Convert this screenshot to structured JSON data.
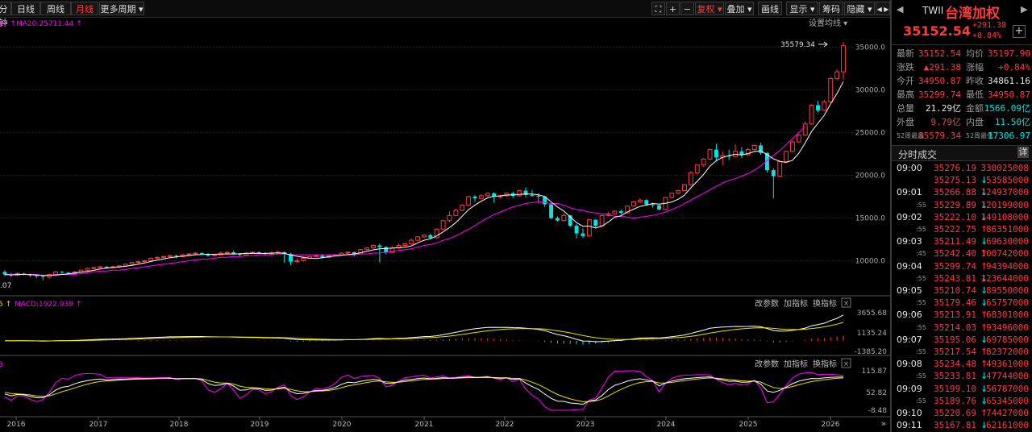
{
  "toolbar": {
    "tabs": [
      {
        "label": "分钟",
        "active": false
      },
      {
        "label": "日线",
        "active": false
      },
      {
        "label": "周线",
        "active": false
      },
      {
        "label": "月线",
        "active": true
      },
      {
        "label": "更多周期 ▾",
        "active": false
      }
    ],
    "right_buttons": [
      "⛶",
      "+",
      "−",
      "复权 ▾",
      "叠加 ▾",
      "画线",
      "显示 ▾",
      "筹码",
      "隐藏 ▾"
    ],
    "overflow": "◀ ▶"
  },
  "main_chart": {
    "ma_legend_prefix": "47 ↑",
    "ma20_label": "MA20:25711.44 ↑",
    "settings_label": "设置均线 ▾",
    "peak_label": "35579.34",
    "low_label": ".07",
    "y_ticks": [
      "35000.0",
      "30000.0",
      "25000.0",
      "20000.0",
      "15000.0",
      "10000.0"
    ],
    "y_tick_values": [
      35000,
      30000,
      25000,
      20000,
      15000,
      10000
    ],
    "y_range": [
      6000,
      37200
    ]
  },
  "macd_panel": {
    "prefix": "5 ↑",
    "label": "MACD:1922.939 ↑",
    "buttons": [
      "改参数",
      "加指标",
      "换指标",
      "×"
    ],
    "y_ticks": [
      "3655.68",
      "1135.24",
      "-1385.20"
    ]
  },
  "kdj_panel": {
    "prefix": "3",
    "buttons": [
      "改参数",
      "加指标",
      "换指标",
      "×"
    ],
    "y_ticks": [
      "115.87",
      "52.82",
      "-8.48"
    ]
  },
  "x_axis": {
    "years": [
      "2016",
      "2017",
      "2018",
      "2019",
      "2020",
      "2021",
      "2022",
      "2023",
      "2024",
      "2025",
      "2026"
    ],
    "nav_icon": "»"
  },
  "chart_data": {
    "type": "candlestick",
    "title": "",
    "period": "monthly",
    "x_start": "2015-07",
    "candles": [
      [
        8700,
        8400,
        8900,
        8200
      ],
      [
        8400,
        8300,
        8600,
        8100
      ],
      [
        8300,
        8500,
        8700,
        8200
      ],
      [
        8500,
        8400,
        8600,
        8300
      ],
      [
        8400,
        8300,
        8500,
        8100
      ],
      [
        8300,
        8200,
        8400,
        8000
      ],
      [
        8200,
        8100,
        8300,
        7700
      ],
      [
        8100,
        8400,
        8500,
        7900
      ],
      [
        8400,
        8700,
        8800,
        8300
      ],
      [
        8700,
        8600,
        8800,
        8500
      ],
      [
        8600,
        8500,
        8700,
        8400
      ],
      [
        8500,
        8700,
        8800,
        8400
      ],
      [
        8700,
        8900,
        9000,
        8600
      ],
      [
        8900,
        9100,
        9200,
        8800
      ],
      [
        9100,
        9200,
        9300,
        9000
      ],
      [
        9200,
        9300,
        9400,
        9100
      ],
      [
        9300,
        9200,
        9400,
        9100
      ],
      [
        9200,
        9300,
        9400,
        9100
      ],
      [
        9300,
        9400,
        9500,
        9200
      ],
      [
        9400,
        9600,
        9700,
        9300
      ],
      [
        9600,
        9800,
        9900,
        9500
      ],
      [
        9800,
        9900,
        10000,
        9700
      ],
      [
        9900,
        10000,
        10100,
        9800
      ],
      [
        10000,
        10300,
        10400,
        9900
      ],
      [
        10300,
        10400,
        10500,
        10200
      ],
      [
        10400,
        10500,
        10600,
        10300
      ],
      [
        10500,
        10600,
        10700,
        10400
      ],
      [
        10600,
        10500,
        10700,
        10300
      ],
      [
        10500,
        10700,
        10800,
        10400
      ],
      [
        10700,
        10800,
        10900,
        10600
      ],
      [
        10800,
        10900,
        11000,
        10700
      ],
      [
        10900,
        10800,
        11000,
        10700
      ],
      [
        10800,
        10600,
        10900,
        10500
      ],
      [
        10600,
        10700,
        10800,
        10500
      ],
      [
        10700,
        10900,
        11100,
        10600
      ],
      [
        10900,
        11000,
        11100,
        10800
      ],
      [
        11000,
        10800,
        11200,
        10700
      ],
      [
        10800,
        10700,
        10900,
        10500
      ],
      [
        10700,
        10900,
        11000,
        10600
      ],
      [
        10900,
        11000,
        11100,
        10800
      ],
      [
        11000,
        10900,
        11100,
        10800
      ],
      [
        10900,
        10800,
        11000,
        10600
      ],
      [
        10800,
        10900,
        11100,
        10700
      ],
      [
        10900,
        11000,
        11200,
        10800
      ],
      [
        11000,
        10800,
        11100,
        9800
      ],
      [
        10800,
        9900,
        10900,
        9500
      ],
      [
        9900,
        10000,
        10300,
        9800
      ],
      [
        10000,
        10300,
        10500,
        9900
      ],
      [
        10300,
        10500,
        10600,
        10200
      ],
      [
        10500,
        10600,
        10700,
        10400
      ],
      [
        10600,
        10400,
        10800,
        10300
      ],
      [
        10400,
        10600,
        10700,
        10300
      ],
      [
        10600,
        10700,
        10800,
        10500
      ],
      [
        10700,
        10900,
        11000,
        10600
      ],
      [
        10900,
        11000,
        11100,
        10800
      ],
      [
        11000,
        10800,
        11100,
        10500
      ],
      [
        10800,
        11300,
        11400,
        10700
      ],
      [
        11300,
        11500,
        11600,
        11200
      ],
      [
        11500,
        11800,
        11900,
        11400
      ],
      [
        11800,
        11600,
        12000,
        9800
      ],
      [
        11600,
        11000,
        11700,
        10800
      ],
      [
        11000,
        11500,
        11700,
        10900
      ],
      [
        11500,
        11800,
        12000,
        11400
      ],
      [
        11800,
        12000,
        12100,
        11700
      ],
      [
        12000,
        12400,
        12600,
        11900
      ],
      [
        12400,
        12800,
        12900,
        12300
      ],
      [
        12800,
        13000,
        13100,
        12700
      ],
      [
        13000,
        12700,
        13200,
        12500
      ],
      [
        12700,
        13700,
        13800,
        12600
      ],
      [
        13700,
        14700,
        14800,
        13600
      ],
      [
        14700,
        15300,
        15800,
        14500
      ],
      [
        15300,
        15900,
        16100,
        15200
      ],
      [
        15900,
        16500,
        16600,
        15800
      ],
      [
        16500,
        17500,
        17600,
        16400
      ],
      [
        17500,
        17300,
        17700,
        16900
      ],
      [
        17300,
        17600,
        17800,
        17200
      ],
      [
        17600,
        17900,
        18000,
        17500
      ],
      [
        17900,
        17500,
        18000,
        16800
      ],
      [
        17500,
        17600,
        17700,
        17300
      ],
      [
        17600,
        17900,
        18000,
        17500
      ],
      [
        17900,
        17600,
        18100,
        17400
      ],
      [
        17600,
        18200,
        18300,
        17500
      ],
      [
        18200,
        17700,
        18600,
        17400
      ],
      [
        17700,
        17600,
        18300,
        17500
      ],
      [
        17600,
        17500,
        17900,
        16900
      ],
      [
        17500,
        16600,
        17600,
        16300
      ],
      [
        16600,
        15000,
        16700,
        14900
      ],
      [
        15000,
        14700,
        15200,
        14600
      ],
      [
        14700,
        15300,
        15600,
        14600
      ],
      [
        15300,
        14100,
        15400,
        13900
      ],
      [
        14100,
        13200,
        14300,
        12600
      ],
      [
        13200,
        12900,
        13800,
        12700
      ],
      [
        12900,
        14800,
        14900,
        12800
      ],
      [
        14800,
        14100,
        14900,
        13900
      ],
      [
        14100,
        15300,
        15400,
        14000
      ],
      [
        15300,
        15500,
        15700,
        15200
      ],
      [
        15500,
        15800,
        15900,
        15400
      ],
      [
        15800,
        15600,
        16000,
        15400
      ],
      [
        15600,
        16400,
        16500,
        15500
      ],
      [
        16400,
        16900,
        17000,
        16300
      ],
      [
        16900,
        17100,
        17300,
        16800
      ],
      [
        17100,
        16600,
        17200,
        16400
      ],
      [
        16600,
        16500,
        16800,
        16200
      ],
      [
        16500,
        16000,
        16600,
        15900
      ],
      [
        16000,
        17400,
        17500,
        15900
      ],
      [
        17400,
        17900,
        18000,
        17300
      ],
      [
        17900,
        18200,
        18300,
        17800
      ],
      [
        18200,
        18900,
        19000,
        18100
      ],
      [
        18900,
        20300,
        20500,
        18800
      ],
      [
        20300,
        21200,
        21300,
        20100
      ],
      [
        21200,
        21900,
        22000,
        21000
      ],
      [
        21900,
        23000,
        23100,
        21800
      ],
      [
        23000,
        22100,
        23700,
        21600
      ],
      [
        22100,
        22300,
        22800,
        21200
      ],
      [
        22300,
        22200,
        23000,
        21800
      ],
      [
        22200,
        22800,
        23600,
        22100
      ],
      [
        22800,
        22400,
        23300,
        22000
      ],
      [
        22400,
        23000,
        23200,
        22300
      ],
      [
        23000,
        23500,
        23600,
        22900
      ],
      [
        23500,
        22600,
        23800,
        22400
      ],
      [
        22600,
        20600,
        22700,
        20300
      ],
      [
        20600,
        19900,
        20800,
        17300
      ],
      [
        19900,
        21600,
        21700,
        19800
      ],
      [
        21600,
        22800,
        22900,
        21500
      ],
      [
        22800,
        23900,
        24100,
        22700
      ],
      [
        23900,
        24700,
        24800,
        23800
      ],
      [
        24700,
        26000,
        26300,
        24600
      ],
      [
        26000,
        28200,
        28300,
        25900
      ],
      [
        28200,
        27600,
        28700,
        27400
      ],
      [
        27600,
        28600,
        28800,
        27500
      ],
      [
        28600,
        31300,
        31500,
        28500
      ],
      [
        31300,
        32100,
        32400,
        31100
      ],
      [
        32100,
        35152.54,
        35579.34,
        31200
      ]
    ],
    "ma20": [
      8400,
      8400,
      8400,
      8400,
      8400,
      8400,
      8300,
      8300,
      8400,
      8400,
      8400,
      8400,
      8500,
      8600,
      8700,
      8800,
      8800,
      8900,
      8900,
      9000,
      9100,
      9200,
      9300,
      9400,
      9500,
      9600,
      9700,
      9800,
      9900,
      10000,
      10100,
      10200,
      10200,
      10300,
      10400,
      10400,
      10500,
      10500,
      10600,
      10600,
      10700,
      10700,
      10700,
      10800,
      10800,
      10700,
      10700,
      10700,
      10700,
      10700,
      10700,
      10700,
      10700,
      10700,
      10700,
      10700,
      10800,
      10800,
      10900,
      10900,
      11000,
      11100,
      11200,
      11300,
      11400,
      11600,
      11800,
      11900,
      12100,
      12400,
      12600,
      12900,
      13300,
      13700,
      14100,
      14600,
      15000,
      15400,
      15700,
      16000,
      16300,
      16500,
      16700,
      16800,
      16900,
      16800,
      16700,
      16700,
      16500,
      16200,
      16000,
      15900,
      15700,
      15600,
      15500,
      15400,
      15200,
      15200,
      15100,
      15000,
      15100,
      15200,
      15300,
      15500,
      15700,
      16000,
      16300,
      16700,
      17100,
      17500,
      17900,
      18300,
      18700,
      19100,
      19400,
      19600,
      19900,
      20200,
      20600,
      21100,
      21700,
      22300,
      22900,
      23600,
      24300,
      25000,
      25711.44
    ],
    "macd_dif_range": [
      -1385.2,
      3655.68
    ],
    "kdj_range": [
      -8.48,
      115.87
    ]
  },
  "quote": {
    "code": "TWII",
    "name": "台湾加权",
    "price": "35152.54",
    "change": "+291.38",
    "change_pct": "+0.84%",
    "nav_left": "◀",
    "nav_right": "▶",
    "add_icon": "+",
    "rows": [
      {
        "l1": "最新",
        "v1": "35152.54",
        "c1": "red",
        "l2": "均价",
        "v2": "35197.90",
        "c2": "red"
      },
      {
        "l1": "涨跌",
        "v1": "▲291.38",
        "c1": "red",
        "l2": "涨幅",
        "v2": "+0.84%",
        "c2": "red"
      },
      {
        "l1": "今开",
        "v1": "34950.87",
        "c1": "red",
        "l2": "昨收",
        "v2": "34861.16",
        "c2": "white"
      },
      {
        "l1": "最高",
        "v1": "35299.74",
        "c1": "red",
        "l2": "最低",
        "v2": "34950.87",
        "c2": "red"
      },
      {
        "l1": "总量",
        "v1": "21.29亿",
        "c1": "white",
        "l2": "金额",
        "v2": "1566.09亿",
        "c2": "green"
      },
      {
        "l1": "外盘",
        "v1": "9.79亿",
        "c1": "red",
        "l2": "内盘",
        "v2": "11.50亿",
        "c2": "green"
      },
      {
        "l1": "52周最高",
        "v1": "35579.34",
        "c1": "red",
        "l2": "52周最低",
        "v2": "17306.97",
        "c2": "green"
      }
    ]
  },
  "ticks_header": {
    "title": "分时成交",
    "detail": "详"
  },
  "ticks": [
    {
      "t": "09:00",
      "p": "35276.19",
      "v": "330025008",
      "dir": "",
      "c": "red"
    },
    {
      "t": "",
      "p": "35275.13",
      "v": "53585000",
      "dir": "↓",
      "c": "red"
    },
    {
      "t": "09:01",
      "p": "35266.88",
      "v": "124937000",
      "dir": "↓",
      "c": "red"
    },
    {
      "t": ":55",
      "p": "35229.89",
      "v": "120199000",
      "dir": "↓",
      "c": "red"
    },
    {
      "t": "09:02",
      "p": "35222.10",
      "v": "149108000",
      "dir": "↓",
      "c": "red"
    },
    {
      "t": ":55",
      "p": "35222.75",
      "v": "86351000",
      "dir": "↑",
      "c": "red"
    },
    {
      "t": "09:03",
      "p": "35211.49",
      "v": "69630000",
      "dir": "↓",
      "c": "red"
    },
    {
      "t": ":45",
      "p": "35242.40",
      "v": "100742000",
      "dir": "↑",
      "c": "red"
    },
    {
      "t": "09:04",
      "p": "35299.74",
      "v": "94394000",
      "dir": "↑",
      "c": "red"
    },
    {
      "t": ":55",
      "p": "35243.81",
      "v": "123644000",
      "dir": "↓",
      "c": "red"
    },
    {
      "t": "09:05",
      "p": "35210.74",
      "v": "89550000",
      "dir": "↓",
      "c": "red"
    },
    {
      "t": ":55",
      "p": "35179.46",
      "v": "65757000",
      "dir": "↓",
      "c": "red"
    },
    {
      "t": "09:06",
      "p": "35213.91",
      "v": "68301000",
      "dir": "↑",
      "c": "red"
    },
    {
      "t": ":55",
      "p": "35214.03",
      "v": "93496000",
      "dir": "↑",
      "c": "red"
    },
    {
      "t": "09:07",
      "p": "35195.06",
      "v": "69785000",
      "dir": "↓",
      "c": "red"
    },
    {
      "t": ":55",
      "p": "35217.54",
      "v": "82372000",
      "dir": "↑",
      "c": "red"
    },
    {
      "t": "09:08",
      "p": "35234.48",
      "v": "49361000",
      "dir": "↑",
      "c": "red"
    },
    {
      "t": ":55",
      "p": "35233.81",
      "v": "47744000",
      "dir": "↓",
      "c": "red"
    },
    {
      "t": "09:09",
      "p": "35199.10",
      "v": "56787000",
      "dir": "↓",
      "c": "red"
    },
    {
      "t": ":55",
      "p": "35189.76",
      "v": "65345000",
      "dir": "↓",
      "c": "red"
    },
    {
      "t": "09:10",
      "p": "35220.69",
      "v": "74427000",
      "dir": "↑",
      "c": "red"
    },
    {
      "t": "09:11",
      "p": "35167.81",
      "v": "62161000",
      "dir": "↓",
      "c": "red"
    }
  ],
  "colors": {
    "up": "#ff3b3b",
    "down": "#00e5e5",
    "ma_white": "#ffffff",
    "ma_magenta": "#ff00ff",
    "macd_yellow": "#e8e000",
    "grid": "#333333"
  }
}
